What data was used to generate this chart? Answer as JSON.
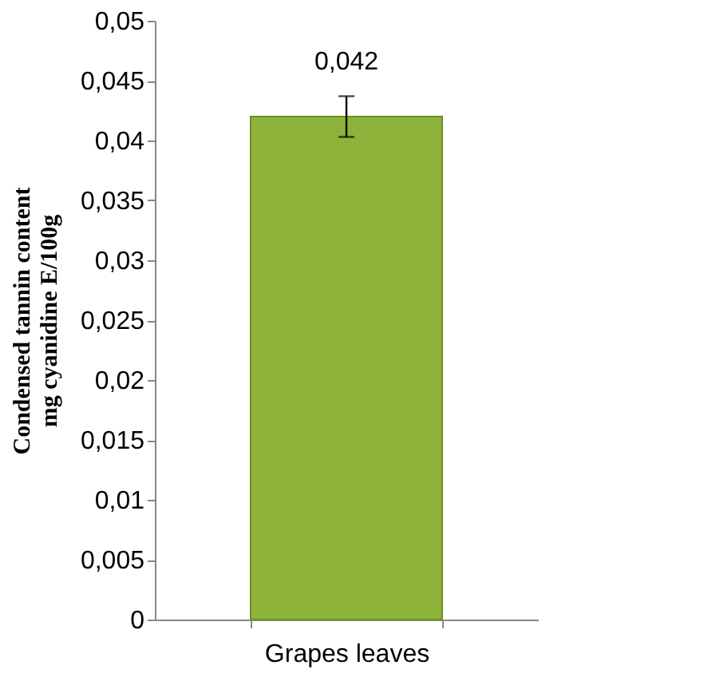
{
  "chart_data": {
    "type": "bar",
    "ylabel": "Condensed tannin content\nmg cyanidine E/100g",
    "categories": [
      "Grapes leaves"
    ],
    "values": [
      0.042
    ],
    "errors": [
      0.0017
    ],
    "value_labels": [
      "0,042"
    ],
    "color": "#8db33a",
    "ylim": [
      0,
      0.05
    ],
    "yticks": [
      {
        "value": 0,
        "label": "0"
      },
      {
        "value": 0.005,
        "label": "0,005"
      },
      {
        "value": 0.01,
        "label": "0,01"
      },
      {
        "value": 0.015,
        "label": "0,015"
      },
      {
        "value": 0.02,
        "label": "0,02"
      },
      {
        "value": 0.025,
        "label": "0,025"
      },
      {
        "value": 0.03,
        "label": "0,03"
      },
      {
        "value": 0.035,
        "label": "0,035"
      },
      {
        "value": 0.04,
        "label": "0,04"
      },
      {
        "value": 0.045,
        "label": "0,045"
      },
      {
        "value": 0.05,
        "label": "0,05"
      }
    ],
    "grid": false
  }
}
